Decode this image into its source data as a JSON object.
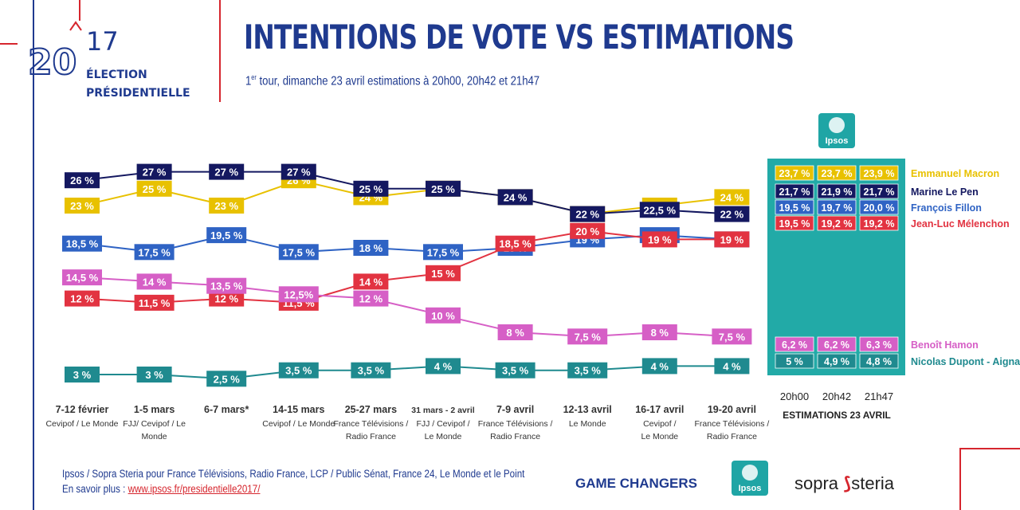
{
  "logo": {
    "year_top": "17",
    "year_left": "20",
    "line1": "ÉLECTION",
    "line2": "PRÉSIDENTIELLE"
  },
  "header": {
    "title": "INTENTIONS DE VOTE VS ESTIMATIONS",
    "subtitle_prefix": "1",
    "subtitle_sup": "er",
    "subtitle_rest": " tour, dimanche 23 avril estimations à 20h00, 20h42 et 21h47"
  },
  "colors": {
    "macron": "#e8c100",
    "lepen": "#141860",
    "fillon": "#2f63c4",
    "melenchon": "#e23341",
    "hamon": "#d65fc6",
    "dupont": "#1f8a8f",
    "panel": "#22aaa7",
    "accent_red": "#d6262e",
    "accent_blue": "#1f3a8f"
  },
  "chart_data": {
    "type": "line",
    "title": "INTENTIONS DE VOTE VS ESTIMATIONS",
    "categories": [
      "7-12 février",
      "1-5 mars",
      "6-7 mars*",
      "14-15 mars",
      "25-27 mars",
      "31 mars - 2 avril",
      "7-9 avril",
      "12-13 avril",
      "16-17 avril",
      "19-20 avril"
    ],
    "category_sources": [
      [
        "Cevipof / Le Monde"
      ],
      [
        "FJJ/ Cevipof / Le",
        "Monde"
      ],
      [],
      [
        "Cevipof / Le Monde"
      ],
      [
        "France Télévisions /",
        "Radio France"
      ],
      [
        "FJJ / Cevipof /",
        "Le Monde"
      ],
      [
        "France Télévisions /",
        "Radio France"
      ],
      [
        "Le Monde"
      ],
      [
        "Cevipof /",
        "Le Monde"
      ],
      [
        "France Télévisions /",
        "Radio France"
      ]
    ],
    "ylabel": "",
    "xlabel": "",
    "ylim": [
      0,
      30
    ],
    "series": [
      {
        "name": "Emmanuel Macron",
        "key": "macron",
        "values": [
          23,
          25,
          23,
          26,
          24,
          25,
          24,
          22,
          23,
          24
        ],
        "labels": [
          "23 %",
          "25 %",
          "23 %",
          "26 %",
          "24 %",
          "25 %",
          "24 %",
          "22 %",
          "23 %",
          "24 %"
        ]
      },
      {
        "name": "Marine Le Pen",
        "key": "lepen",
        "values": [
          26,
          27,
          27,
          27,
          25,
          25,
          24,
          22,
          22.5,
          22
        ],
        "labels": [
          "26 %",
          "27 %",
          "27 %",
          "27 %",
          "25 %",
          "25 %",
          "24 %",
          "22 %",
          "22,5 %",
          "22 %"
        ]
      },
      {
        "name": "François Fillon",
        "key": "fillon",
        "values": [
          18.5,
          17.5,
          19.5,
          17.5,
          18,
          17.5,
          18,
          19,
          19.5,
          19
        ],
        "labels": [
          "18,5 %",
          "17,5 %",
          "19,5 %",
          "17,5 %",
          "18 %",
          "17,5 %",
          "18 %",
          "19 %",
          "19,5 %",
          "19 %"
        ]
      },
      {
        "name": "Jean-Luc Mélenchon",
        "key": "melenchon",
        "values": [
          12,
          11.5,
          12,
          11.5,
          14,
          15,
          18.5,
          20,
          19,
          19
        ],
        "labels": [
          "12 %",
          "11,5 %",
          "12 %",
          "11,5 %",
          "14 %",
          "15 %",
          "18,5 %",
          "20 %",
          "19 %",
          "19 %"
        ]
      },
      {
        "name": "Benoît Hamon",
        "key": "hamon",
        "values": [
          14.5,
          14,
          13.5,
          12.5,
          12,
          10,
          8,
          7.5,
          8,
          7.5
        ],
        "labels": [
          "14,5 %",
          "14 %",
          "13,5 %",
          "12,5%",
          "12 %",
          "10 %",
          "8 %",
          "7,5 %",
          "8 %",
          "7,5 %"
        ]
      },
      {
        "name": "Nicolas Dupont - Aignan",
        "key": "dupont",
        "values": [
          3,
          3,
          2.5,
          3.5,
          3.5,
          4,
          3.5,
          3.5,
          4,
          4
        ],
        "labels": [
          "3 %",
          "3 %",
          "2,5 %",
          "3,5 %",
          "3,5 %",
          "4 %",
          "3,5 %",
          "3,5 %",
          "4 %",
          "4 %"
        ]
      }
    ],
    "estimations": {
      "title": "ESTIMATIONS 23 AVRIL",
      "columns": [
        "20h00",
        "20h42",
        "21h47"
      ],
      "rows": [
        {
          "key": "macron",
          "name": "Emmanuel Macron",
          "values": [
            "23,7 %",
            "23,7 %",
            "23,9 %"
          ]
        },
        {
          "key": "lepen",
          "name": "Marine Le Pen",
          "values": [
            "21,7 %",
            "21,9 %",
            "21,7 %"
          ]
        },
        {
          "key": "fillon",
          "name": "François Fillon",
          "values": [
            "19,5 %",
            "19,7 %",
            "20,0 %"
          ]
        },
        {
          "key": "melenchon",
          "name": "Jean-Luc Mélenchon",
          "values": [
            "19,5 %",
            "19,2 %",
            "19,2 %"
          ]
        },
        {
          "key": "hamon",
          "name": "Benoît Hamon",
          "values": [
            "6,2 %",
            "6,2 %",
            "6,3 %"
          ]
        },
        {
          "key": "dupont",
          "name": "Nicolas Dupont - Aignan",
          "values": [
            "5 %",
            "4,9 %",
            "4,8 %"
          ]
        }
      ]
    }
  },
  "ipsos_badge_label": "Ipsos",
  "footer": {
    "source_line1": "Ipsos / Sopra Steria pour France Télévisions, Radio France, LCP / Public Sénat, France 24, Le Monde et le Point",
    "source_line2_prefix": "En savoir plus : ",
    "source_link": "www.ipsos.fr/presidentielle2017/",
    "game_changers": "GAME CHANGERS",
    "sopra": "sopra",
    "steria": "steria"
  }
}
